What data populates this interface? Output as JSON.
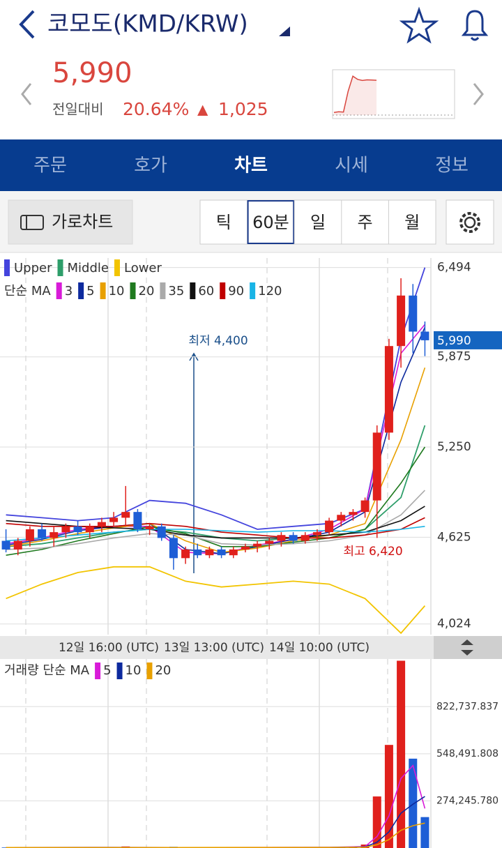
{
  "header": {
    "title": "코모도(KMD/KRW)",
    "price": "5,990",
    "change_label": "전일대비",
    "change_pct": "20.64%",
    "change_arrow": "▲",
    "change_amount": "1,025"
  },
  "tabs": {
    "items": [
      "주문",
      "호가",
      "차트",
      "시세",
      "정보"
    ],
    "active": 2
  },
  "toolbar": {
    "landscape": "가로차트",
    "periods": [
      "틱",
      "60분",
      "일",
      "주",
      "월"
    ],
    "active": 1
  },
  "chart_data": [
    {
      "type": "candlestick",
      "up_color": "#e0201c",
      "down_color": "#1e5ed6",
      "open": [
        4600,
        4540,
        4600,
        4680,
        4620,
        4660,
        4700,
        4660,
        4700,
        4730,
        4760,
        4800,
        4680,
        4700,
        4620,
        4480,
        4540,
        4500,
        4540,
        4500,
        4540,
        4560,
        4580,
        4600,
        4640,
        4600,
        4640,
        4660,
        4740,
        4780,
        4800,
        4880,
        5350,
        5950,
        6300,
        6050
      ],
      "high": [
        4680,
        4620,
        4700,
        4720,
        4700,
        4720,
        4740,
        4720,
        4760,
        4800,
        4980,
        4820,
        4720,
        4720,
        4640,
        4560,
        4580,
        4560,
        4560,
        4560,
        4580,
        4600,
        4620,
        4660,
        4660,
        4660,
        4680,
        4760,
        4800,
        4820,
        4900,
        5400,
        6000,
        6420,
        6380,
        6120
      ],
      "low": [
        4520,
        4500,
        4560,
        4600,
        4560,
        4620,
        4640,
        4620,
        4660,
        4700,
        4700,
        4660,
        4640,
        4600,
        4400,
        4440,
        4480,
        4480,
        4480,
        4480,
        4520,
        4520,
        4540,
        4560,
        4580,
        4580,
        4600,
        4640,
        4700,
        4740,
        4760,
        4620,
        5300,
        5800,
        5900,
        5880
      ],
      "close": [
        4540,
        4600,
        4680,
        4620,
        4660,
        4700,
        4660,
        4700,
        4730,
        4760,
        4800,
        4680,
        4700,
        4620,
        4480,
        4540,
        4500,
        4540,
        4500,
        4540,
        4560,
        4580,
        4600,
        4640,
        4600,
        4640,
        4660,
        4740,
        4780,
        4800,
        4880,
        5350,
        5950,
        6300,
        6050,
        5990
      ],
      "ylim": [
        3950,
        6560
      ],
      "yticks": [
        {
          "value": 4024,
          "label": "4,024"
        },
        {
          "value": 4625,
          "label": "4,625"
        },
        {
          "value": 5250,
          "label": "5,250"
        },
        {
          "value": 5875,
          "label": "5,875"
        },
        {
          "value": 6494,
          "label": "6,494"
        }
      ],
      "last_price": {
        "value": 5990,
        "label": "5,990"
      },
      "bands": [
        {
          "name": "Upper",
          "color": "#4444dd",
          "x": [
            0,
            3,
            6,
            9,
            12,
            15,
            18,
            21,
            24,
            27,
            30,
            33,
            35
          ],
          "values": [
            4780,
            4760,
            4740,
            4760,
            4880,
            4860,
            4780,
            4680,
            4700,
            4720,
            4820,
            6000,
            6494
          ]
        },
        {
          "name": "Middle",
          "color": "#2e9e6a",
          "x": [
            0,
            3,
            6,
            9,
            12,
            15,
            18,
            21,
            24,
            27,
            30,
            33,
            35
          ],
          "values": [
            4560,
            4580,
            4620,
            4660,
            4680,
            4660,
            4620,
            4600,
            4620,
            4620,
            4680,
            4900,
            5400
          ]
        },
        {
          "name": "Lower",
          "color": "#f2c400",
          "x": [
            0,
            3,
            6,
            9,
            12,
            15,
            18,
            21,
            24,
            27,
            30,
            33,
            35
          ],
          "values": [
            4200,
            4300,
            4380,
            4420,
            4420,
            4320,
            4280,
            4300,
            4320,
            4300,
            4200,
            3960,
            4150
          ]
        }
      ],
      "ma_label": "단순 MA",
      "series": [
        {
          "name": "3",
          "color": "#d81bd8",
          "x": [
            0,
            3,
            6,
            9,
            12,
            15,
            18,
            21,
            24,
            27,
            30,
            33,
            35
          ],
          "values": [
            4580,
            4620,
            4680,
            4700,
            4700,
            4520,
            4510,
            4570,
            4610,
            4680,
            4820,
            5900,
            6100
          ]
        },
        {
          "name": "5",
          "color": "#0d2a9e",
          "x": [
            0,
            3,
            6,
            9,
            12,
            15,
            18,
            21,
            24,
            27,
            30,
            33,
            35
          ],
          "values": [
            4570,
            4610,
            4670,
            4700,
            4720,
            4540,
            4510,
            4560,
            4610,
            4660,
            4800,
            5700,
            6080
          ]
        },
        {
          "name": "10",
          "color": "#e8a000",
          "x": [
            0,
            3,
            6,
            9,
            12,
            15,
            18,
            21,
            24,
            27,
            30,
            33,
            35
          ],
          "values": [
            4560,
            4600,
            4650,
            4690,
            4720,
            4600,
            4520,
            4550,
            4600,
            4640,
            4720,
            5300,
            5800
          ]
        },
        {
          "name": "20",
          "color": "#1f7a1f",
          "x": [
            0,
            3,
            6,
            9,
            12,
            15,
            18,
            21,
            24,
            27,
            30,
            33,
            35
          ],
          "values": [
            4500,
            4540,
            4600,
            4650,
            4700,
            4650,
            4560,
            4560,
            4590,
            4620,
            4680,
            5000,
            5250
          ]
        },
        {
          "name": "35",
          "color": "#aaaaaa",
          "x": [
            0,
            3,
            6,
            9,
            12,
            15,
            18,
            21,
            24,
            27,
            30,
            33,
            35
          ],
          "values": [
            4540,
            4550,
            4580,
            4620,
            4650,
            4640,
            4580,
            4570,
            4580,
            4600,
            4640,
            4780,
            4950
          ]
        },
        {
          "name": "60",
          "color": "#111111",
          "x": [
            0,
            3,
            6,
            9,
            12,
            15,
            18,
            21,
            24,
            27,
            30,
            33,
            35
          ],
          "values": [
            4740,
            4720,
            4700,
            4690,
            4680,
            4640,
            4620,
            4620,
            4620,
            4640,
            4660,
            4740,
            4840
          ]
        },
        {
          "name": "90",
          "color": "#c00000",
          "x": [
            0,
            3,
            6,
            9,
            12,
            15,
            18,
            21,
            24,
            27,
            30,
            33,
            35
          ],
          "values": [
            4720,
            4700,
            4700,
            4700,
            4720,
            4700,
            4660,
            4640,
            4620,
            4620,
            4640,
            4680,
            4760
          ]
        },
        {
          "name": "120",
          "color": "#19b4e6",
          "x": [
            0,
            3,
            6,
            9,
            12,
            15,
            18,
            21,
            24,
            27,
            30,
            33,
            35
          ],
          "values": [
            4600,
            4620,
            4640,
            4660,
            4680,
            4680,
            4670,
            4660,
            4670,
            4670,
            4660,
            4680,
            4700
          ]
        }
      ],
      "annotations": [
        "최저 4,400",
        "최고 6,420"
      ],
      "x_labels": [
        "12일 16:00 (UTC)",
        "13일 13:00 (UTC)",
        "14일 10:00 (UTC)"
      ]
    },
    {
      "type": "bar",
      "legend_label": "거래량 단순 MA",
      "values": [
        3000,
        2000,
        4000,
        2500,
        3000,
        2000,
        3500,
        2500,
        3000,
        4000,
        9000,
        5000,
        3000,
        4000,
        7000,
        3000,
        2500,
        3000,
        2000,
        2500,
        3000,
        2500,
        2000,
        3000,
        2500,
        3000,
        3000,
        5000,
        6000,
        5000,
        20000,
        300000,
        600000,
        1090000,
        520000,
        180000
      ],
      "ylim": [
        0,
        1100000
      ],
      "yticks": [
        {
          "value": 274245.78,
          "label": "274,245.780"
        },
        {
          "value": 548491.808,
          "label": "548,491.808"
        },
        {
          "value": 822737.837,
          "label": "822,737.837"
        }
      ],
      "series": [
        {
          "name": "5",
          "color": "#d81bd8",
          "x": [
            0,
            9,
            18,
            27,
            30,
            31,
            32,
            33,
            34,
            35
          ],
          "values": [
            3000,
            3200,
            2800,
            3800,
            8000,
            67000,
            187000,
            405000,
            480000,
            230000
          ]
        },
        {
          "name": "10",
          "color": "#0d2a9e",
          "x": [
            0,
            9,
            18,
            27,
            30,
            31,
            32,
            33,
            34,
            35
          ],
          "values": [
            3000,
            3100,
            2900,
            3400,
            5500,
            34000,
            94000,
            203000,
            255000,
            300000
          ]
        },
        {
          "name": "20",
          "color": "#e8a000",
          "x": [
            0,
            9,
            18,
            27,
            30,
            31,
            32,
            33,
            34,
            35
          ],
          "values": [
            3000,
            3000,
            3100,
            3200,
            4300,
            19000,
            49000,
            103000,
            130000,
            145000
          ]
        }
      ]
    },
    {
      "type": "area",
      "color": "#d9463e",
      "values": [
        4620,
        4650,
        4640,
        5600,
        6300,
        6150,
        6100,
        6130,
        6120,
        6110
      ],
      "ylim": [
        4500,
        6500
      ]
    }
  ]
}
